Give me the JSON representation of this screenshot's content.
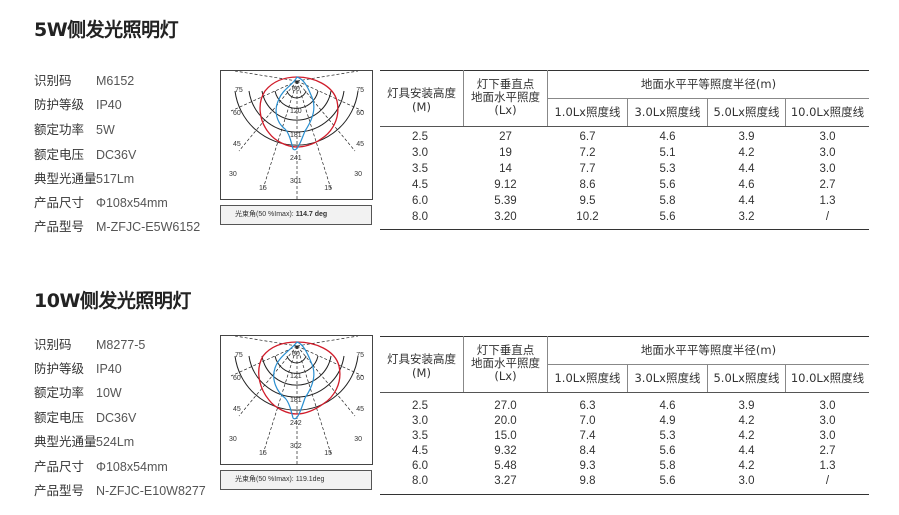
{
  "sections": [
    {
      "title": "5W侧发光照明灯",
      "specs": [
        {
          "label": "识别码",
          "value": "M6152"
        },
        {
          "label": "防护等级",
          "value": "IP40"
        },
        {
          "label": "额定功率",
          "value": "5W"
        },
        {
          "label": "额定电压",
          "value": "DC36V"
        },
        {
          "label": "典型光通量",
          "value": "517Lm"
        },
        {
          "label": "产品尺寸",
          "value": "Φ108x54mm"
        },
        {
          "label": "产品型号",
          "value": "M-ZFJC-E5W6152"
        }
      ],
      "polar": {
        "angles": [
          "75",
          "60",
          "45",
          "30",
          "15",
          "75",
          "60",
          "45",
          "30",
          "15"
        ],
        "rings": [
          "60",
          "120",
          "181",
          "241",
          "301"
        ]
      },
      "beam_label": "光束角(50 %Imax):",
      "beam_value": "114.7 deg",
      "table": {
        "col_height": "灯具安装高度\n(M)",
        "col_center": "灯下垂直点\n地面水平照度\n(Lx)",
        "group_header": "地面水平平等照度半径(m)",
        "sub_headers": [
          "1.0Lx照度线",
          "3.0Lx照度线",
          "5.0Lx照度线",
          "10.0Lx照度线"
        ],
        "rows": [
          [
            "2.5",
            "27",
            "6.7",
            "4.6",
            "3.9",
            "3.0"
          ],
          [
            "3.0",
            "19",
            "7.2",
            "5.1",
            "4.2",
            "3.0"
          ],
          [
            "3.5",
            "14",
            "7.7",
            "5.3",
            "4.4",
            "3.0"
          ],
          [
            "4.5",
            "9.12",
            "8.6",
            "5.6",
            "4.6",
            "2.7"
          ],
          [
            "6.0",
            "5.39",
            "9.5",
            "5.8",
            "4.4",
            "1.3"
          ],
          [
            "8.0",
            "3.20",
            "10.2",
            "5.6",
            "3.2",
            "/"
          ]
        ]
      }
    },
    {
      "title": "10W侧发光照明灯",
      "specs": [
        {
          "label": "识别码",
          "value": "M8277-5"
        },
        {
          "label": "防护等级",
          "value": "IP40"
        },
        {
          "label": "额定功率",
          "value": "10W"
        },
        {
          "label": "额定电压",
          "value": "DC36V"
        },
        {
          "label": "典型光通量",
          "value": "524Lm"
        },
        {
          "label": "产品尺寸",
          "value": "Φ108x54mm"
        },
        {
          "label": "产品型号",
          "value": "N-ZFJC-E10W8277"
        }
      ],
      "polar": {
        "angles": [
          "75",
          "60",
          "45",
          "30",
          "15",
          "75",
          "60",
          "45",
          "30",
          "15"
        ],
        "rings": [
          "60",
          "121",
          "181",
          "242",
          "302"
        ]
      },
      "beam_label": "光束角(50 %Imax):",
      "beam_value": "119.1deg",
      "table": {
        "col_height": "灯具安装高度\n(M)",
        "col_center": "灯下垂直点\n地面水平照度\n(Lx)",
        "group_header": "地面水平平等照度半径(m)",
        "sub_headers": [
          "1.0Lx照度线",
          "3.0Lx照度线",
          "5.0Lx照度线",
          "10.0Lx照度线"
        ],
        "rows": [
          [
            "2.5",
            "27.0",
            "6.3",
            "4.6",
            "3.9",
            "3.0"
          ],
          [
            "3.0",
            "20.0",
            "7.0",
            "4.9",
            "4.2",
            "3.0"
          ],
          [
            "3.5",
            "15.0",
            "7.4",
            "5.3",
            "4.2",
            "3.0"
          ],
          [
            "4.5",
            "9.32",
            "8.4",
            "5.6",
            "4.4",
            "2.7"
          ],
          [
            "6.0",
            "5.48",
            "9.3",
            "5.8",
            "4.2",
            "1.3"
          ],
          [
            "8.0",
            "3.27",
            "9.8",
            "5.6",
            "3.0",
            "/"
          ]
        ]
      }
    }
  ],
  "colors": {
    "curve_c0": "#d01c2a",
    "curve_c90": "#2a8fd0",
    "grid": "#222222"
  }
}
